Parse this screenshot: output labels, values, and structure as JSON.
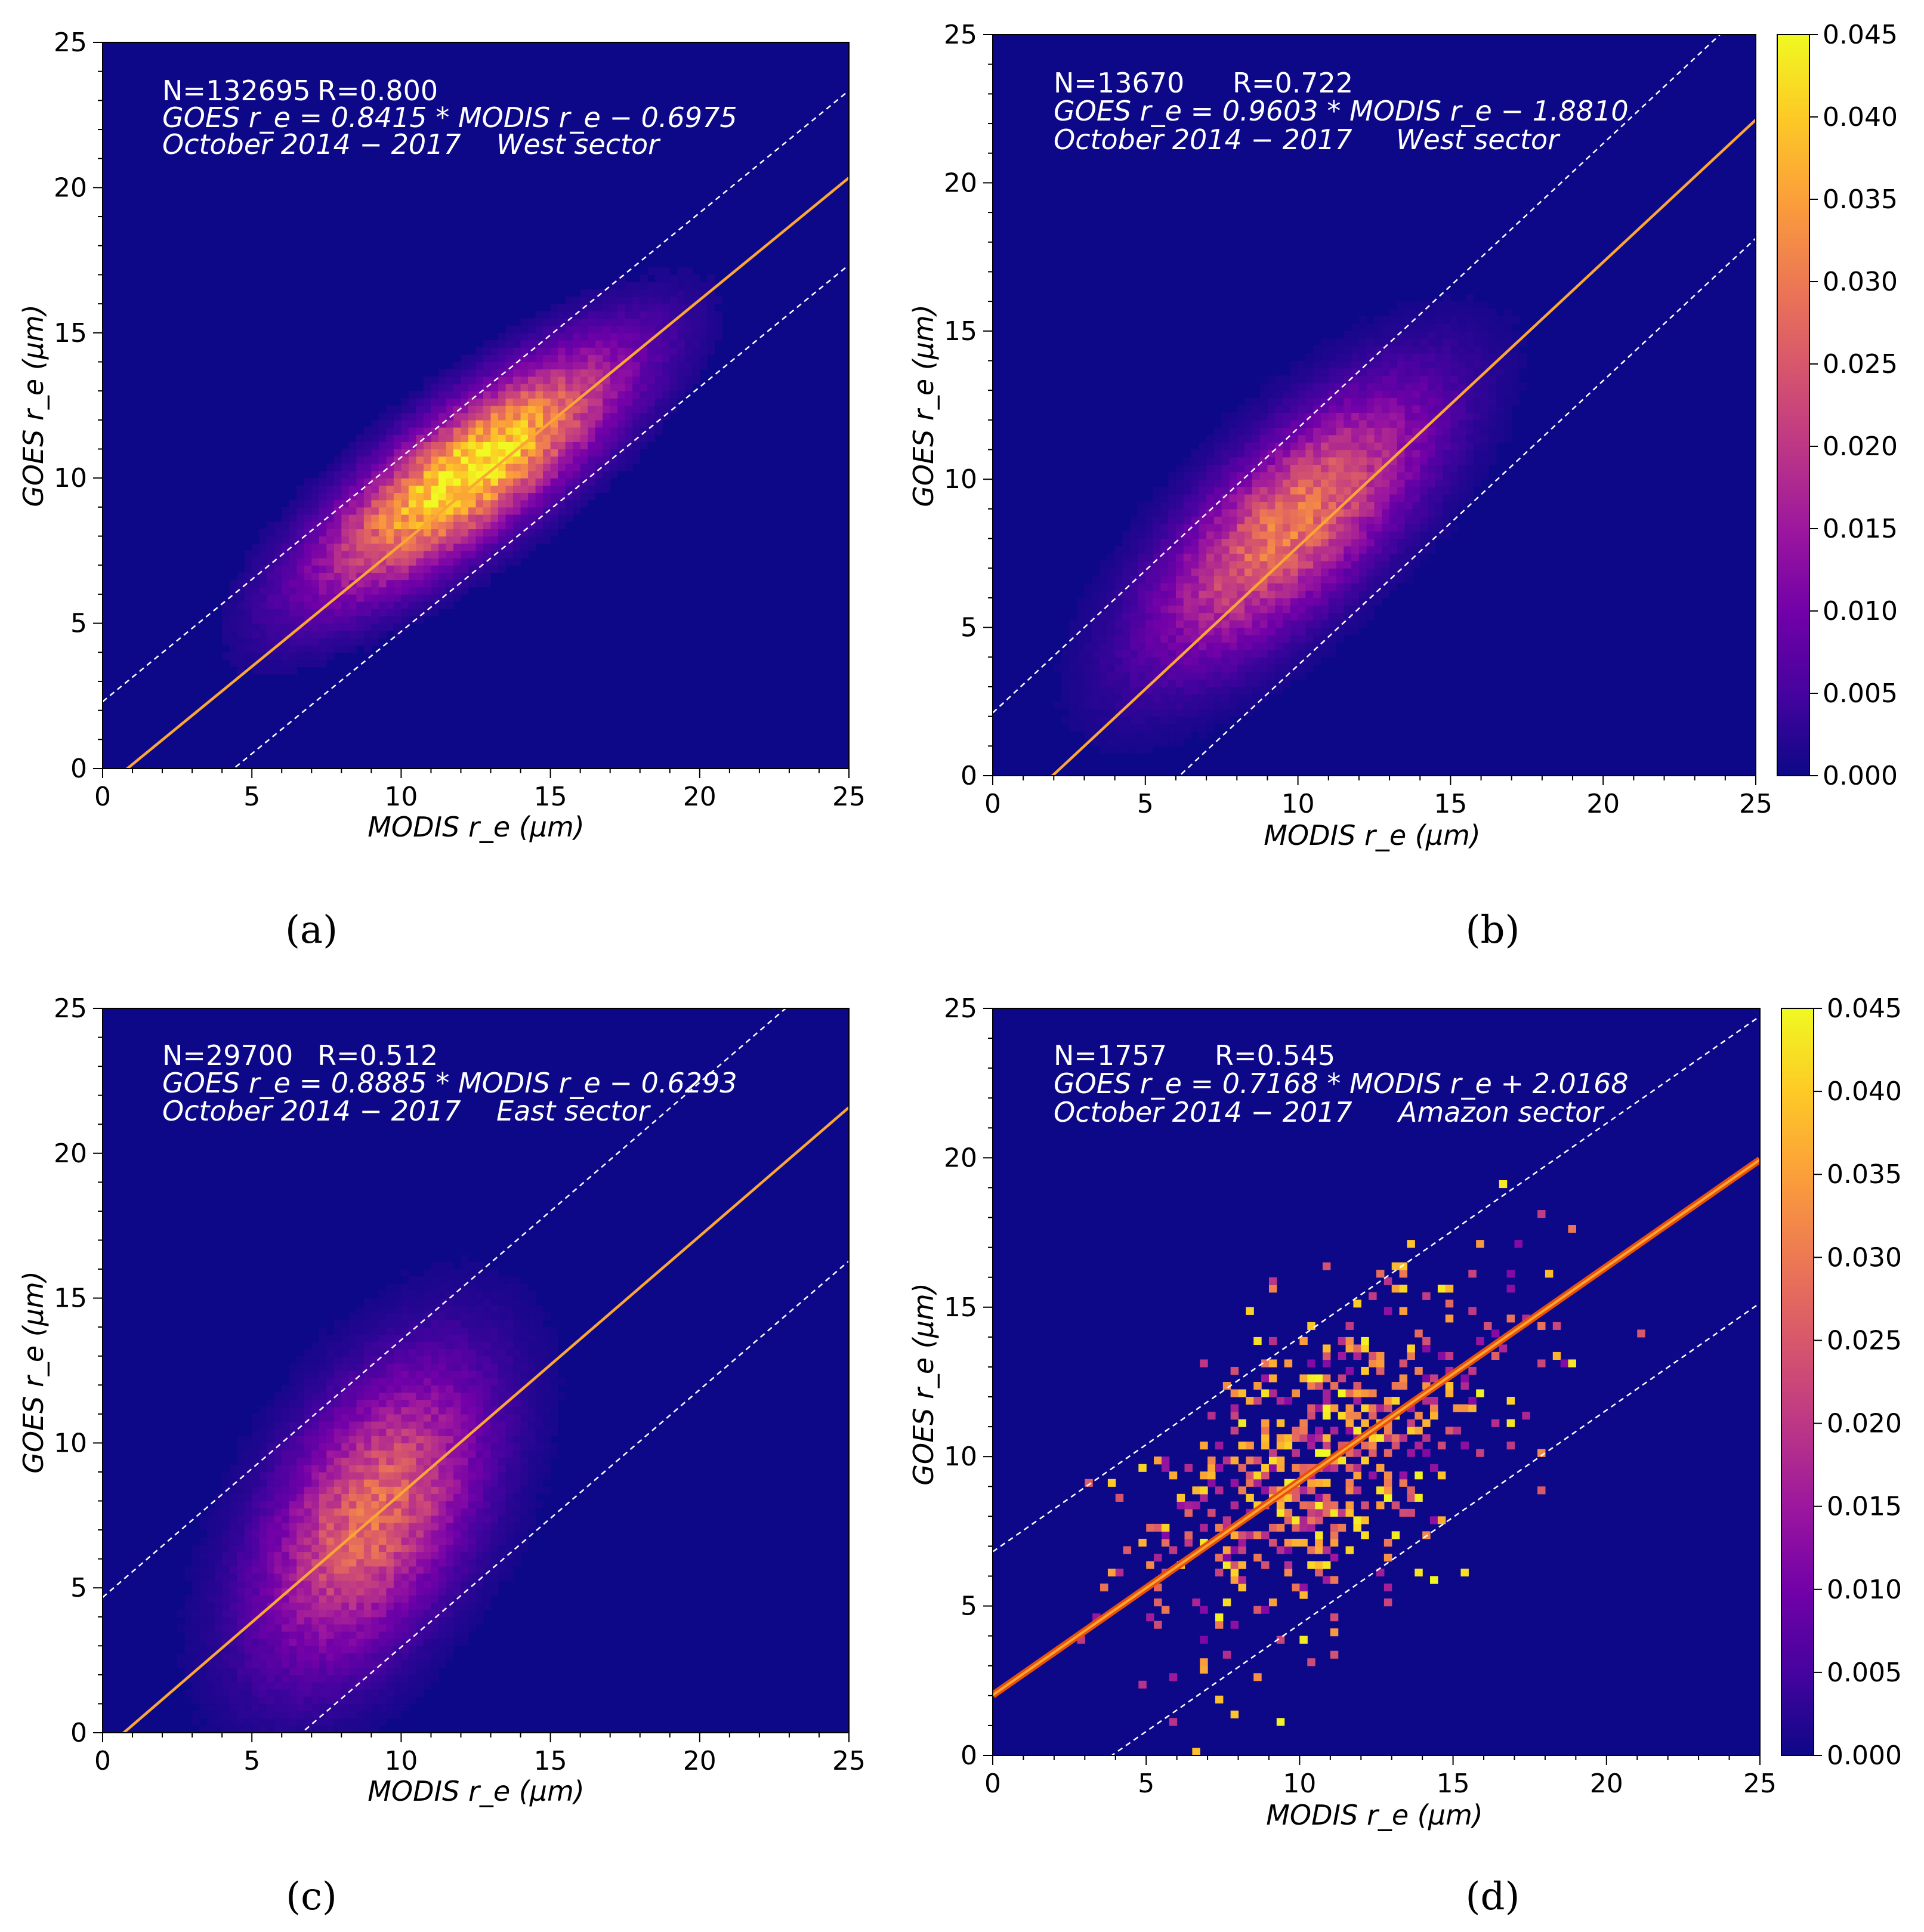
{
  "chart_data": [
    {
      "panel": "(a)",
      "type": "heatmap",
      "n_text": "N=132695",
      "r_text": "R=0.800",
      "fit_text": "GOES r_e = 0.8415 * MODIS r_e − 0.6975",
      "period_text": "October 2014 − 2017",
      "sector_text": "West sector",
      "slope": 0.8415,
      "intercept": -0.6975,
      "band_offset": 3.0,
      "xlabel": "MODIS r_e (μm)",
      "ylabel": "GOES r_e (μm)",
      "xlim": [
        0,
        25
      ],
      "ylim": [
        0,
        25
      ],
      "xticks": [
        0,
        5,
        10,
        15,
        20,
        25
      ],
      "yticks": [
        0,
        5,
        10,
        15,
        20,
        25
      ],
      "density": {
        "cx": 12.3,
        "cy": 10.2,
        "sx": 3.2,
        "sy": 2.6,
        "rho": 0.8,
        "peak": 0.045,
        "sparse": false
      },
      "colorbar": null
    },
    {
      "panel": "(b)",
      "type": "heatmap",
      "n_text": "N=13670",
      "r_text": "R=0.722",
      "fit_text": "GOES r_e = 0.9603 * MODIS r_e − 1.8810",
      "period_text": "October 2014 − 2017",
      "sector_text": "West sector",
      "slope": 0.9603,
      "intercept": -1.881,
      "band_offset": 4.0,
      "xlabel": "MODIS r_e (μm)",
      "ylabel": "GOES r_e (μm)",
      "xlim": [
        0,
        25
      ],
      "ylim": [
        0,
        25
      ],
      "xticks": [
        0,
        5,
        10,
        15,
        20,
        25
      ],
      "yticks": [
        0,
        5,
        10,
        15,
        20,
        25
      ],
      "density": {
        "cx": 9.8,
        "cy": 8.5,
        "sx": 2.9,
        "sy": 2.9,
        "rho": 0.72,
        "peak": 0.03,
        "sparse": false
      },
      "colorbar": {
        "min": 0.0,
        "max": 0.045,
        "ticks": [
          "0.000",
          "0.005",
          "0.010",
          "0.015",
          "0.020",
          "0.025",
          "0.030",
          "0.035",
          "0.040",
          "0.045"
        ]
      }
    },
    {
      "panel": "(c)",
      "type": "heatmap",
      "n_text": "N=29700",
      "r_text": "R=0.512",
      "fit_text": "GOES r_e = 0.8885 * MODIS r_e − 0.6293",
      "period_text": "October 2014 − 2017",
      "sector_text": "East sector",
      "slope": 0.8885,
      "intercept": -0.6293,
      "band_offset": 5.3,
      "xlabel": "MODIS r_e (μm)",
      "ylabel": "GOES r_e (μm)",
      "xlim": [
        0,
        25
      ],
      "ylim": [
        0,
        25
      ],
      "xticks": [
        0,
        5,
        10,
        15,
        20,
        25
      ],
      "yticks": [
        0,
        5,
        10,
        15,
        20,
        25
      ],
      "density": {
        "cx": 9.0,
        "cy": 7.5,
        "sx": 2.4,
        "sy": 3.3,
        "rho": 0.5,
        "peak": 0.028,
        "sparse": false
      },
      "colorbar": null
    },
    {
      "panel": "(d)",
      "type": "heatmap",
      "n_text": "N=1757",
      "r_text": "R=0.545",
      "fit_text": "GOES r_e = 0.7168 * MODIS r_e + 2.0168",
      "period_text": "October 2014 − 2017",
      "sector_text": "Amazon sector",
      "slope": 0.7168,
      "intercept": 2.0168,
      "band_offset": 4.8,
      "xlabel": "MODIS r_e (μm)",
      "ylabel": "GOES r_e (μm)",
      "xlim": [
        0,
        25
      ],
      "ylim": [
        0,
        25
      ],
      "xticks": [
        0,
        5,
        10,
        15,
        20,
        25
      ],
      "yticks": [
        0,
        5,
        10,
        15,
        20,
        25
      ],
      "density": {
        "cx": 10.8,
        "cy": 9.8,
        "sx": 3.0,
        "sy": 3.0,
        "rho": 0.55,
        "peak": 0.045,
        "sparse": true
      },
      "colorbar": {
        "min": 0.0,
        "max": 0.045,
        "ticks": [
          "0.000",
          "0.005",
          "0.010",
          "0.015",
          "0.020",
          "0.025",
          "0.030",
          "0.035",
          "0.040",
          "0.045"
        ]
      }
    }
  ],
  "colors": {
    "background": "#0d0887",
    "fit_line": "#fca636",
    "fit_line_edge": "#e8500a",
    "band_line": "#ffffff",
    "colormap": [
      "#0d0887",
      "#46039f",
      "#7201a8",
      "#9c179e",
      "#bd3786",
      "#d8576b",
      "#ed7953",
      "#fb9f3a",
      "#fdca26",
      "#f0f921"
    ]
  }
}
